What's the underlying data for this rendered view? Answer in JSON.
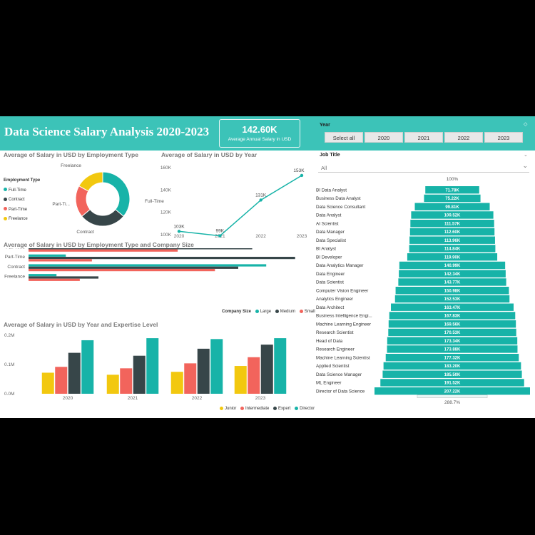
{
  "header": {
    "title": "Data Science Salary Analysis 2020-2023",
    "kpi_value": "142.60K",
    "kpi_label": "Average Annual Salary in USD"
  },
  "year_slicer": {
    "label": "Year",
    "options": [
      "Select all",
      "2020",
      "2021",
      "2022",
      "2023"
    ]
  },
  "job_slicer": {
    "label": "Job Title",
    "selected": "All"
  },
  "colors": {
    "teal": "#17b3a8",
    "dark": "#374649",
    "coral": "#f2645c",
    "yellow": "#f2c80f",
    "header": "#3cc3b8"
  },
  "donut": {
    "title": "Average of Salary in USD by Employment Type",
    "legend_title": "Employment Type",
    "chart_data": {
      "type": "pie",
      "categories": [
        "Full-Time",
        "Contract",
        "Part-Time",
        "Freelance"
      ],
      "values": [
        36,
        28,
        19,
        17
      ],
      "colors": [
        "#17b3a8",
        "#374649",
        "#f2645c",
        "#f2c80f"
      ]
    },
    "labels": [
      "Full-Time",
      "Contract",
      "Part-Ti...",
      "Freelance"
    ]
  },
  "line": {
    "title": "Average of Salary in USD by Year",
    "chart_data": {
      "type": "line",
      "x": [
        "2020",
        "2021",
        "2022",
        "2023"
      ],
      "values": [
        103,
        99,
        131,
        153
      ],
      "value_labels": [
        "103K",
        "99K",
        "131K",
        "153K"
      ],
      "yticks": [
        "160K",
        "140K",
        "120K",
        "100K"
      ],
      "ytick_values": [
        160,
        140,
        120,
        100
      ],
      "ylim": [
        97,
        160
      ]
    }
  },
  "hbar": {
    "title": "Average of Salary in USD by Employment Type and Company Size",
    "chart_data": {
      "type": "bar",
      "categories": [
        "Full-Time",
        "Part-Time",
        "Contract",
        "Freelance"
      ],
      "series": [
        {
          "name": "Large",
          "values": [
            230,
            40,
            255,
            30
          ]
        },
        {
          "name": "Medium",
          "values": [
            240,
            286,
            225,
            75
          ]
        },
        {
          "name": "Small",
          "values": [
            160,
            68,
            200,
            55
          ]
        }
      ],
      "xticks": [
        "0K",
        "50K",
        "100K",
        "150K",
        "200K",
        "250K",
        "300K"
      ],
      "xlim": [
        0,
        300
      ]
    },
    "legend_title": "Company Size",
    "legend_labels": [
      "Large",
      "Medium",
      "Small"
    ]
  },
  "vbar": {
    "title": "Average of Salary in USD by Year and Expertise Level",
    "chart_data": {
      "type": "bar",
      "categories": [
        "2020",
        "2021",
        "2022",
        "2023"
      ],
      "series": [
        {
          "name": "Junior",
          "values": [
            0.072,
            0.065,
            0.075,
            0.095
          ]
        },
        {
          "name": "Intermediate",
          "values": [
            0.092,
            0.087,
            0.104,
            0.125
          ]
        },
        {
          "name": "Expert",
          "values": [
            0.14,
            0.13,
            0.154,
            0.168
          ]
        },
        {
          "name": "Director",
          "values": [
            0.183,
            0.19,
            0.187,
            0.19
          ]
        }
      ],
      "yticks": [
        "0.2M",
        "0.1M",
        "0.0M"
      ],
      "ytick_values": [
        0.2,
        0.1,
        0.0
      ],
      "ylim": [
        0,
        0.2
      ]
    },
    "legend_labels": [
      "Junior",
      "Intermediate",
      "Expert",
      "Director"
    ]
  },
  "funnel": {
    "top_label": "100%",
    "bottom_label": "288.7%",
    "chart_data": {
      "type": "bar",
      "categories": [
        "BI Data Analyst",
        "Business Data Analyst",
        "Data Science Consultant",
        "Data Analyst",
        "AI Scientist",
        "Data Manager",
        "Data Specialist",
        "BI Analyst",
        "BI Developer",
        "Data Analytics Manager",
        "Data Engineer",
        "Data Scientist",
        "Computer Vision Engineer",
        "Analytics Engineer",
        "Data Architect",
        "Business Intelligence Engi...",
        "Machine Learning Engineer",
        "Research Scientist",
        "Head of Data",
        "Research Engineer",
        "Machine Learning Scientist",
        "Applied Scientist",
        "Data Science Manager",
        "ML Engineer",
        "Director of Data Science"
      ],
      "values": [
        71.78,
        75.22,
        99.81,
        109.52,
        111.57,
        112.6,
        113.96,
        114.84,
        119.9,
        140.99,
        142.34,
        143.77,
        150.98,
        152.53,
        163.47,
        167.83,
        169.56,
        170.53,
        173.34,
        173.88,
        177.32,
        183.2,
        185.5,
        191.52,
        207.22
      ],
      "value_labels": [
        "71.78K",
        "75.22K",
        "99.81K",
        "109.52K",
        "111.57K",
        "112.60K",
        "113.96K",
        "114.84K",
        "119.90K",
        "140.99K",
        "142.34K",
        "143.77K",
        "150.98K",
        "152.53K",
        "163.47K",
        "167.83K",
        "169.56K",
        "170.53K",
        "173.34K",
        "173.88K",
        "177.32K",
        "183.20K",
        "185.50K",
        "191.52K",
        "207.22K"
      ]
    }
  }
}
